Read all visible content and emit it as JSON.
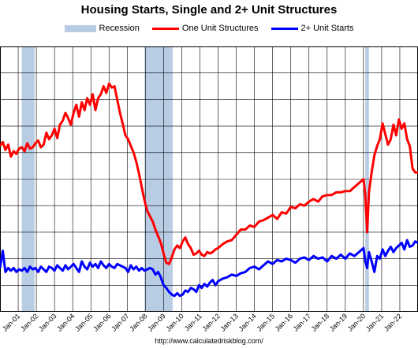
{
  "colors": {
    "recession": "#b8cce4",
    "one_unit": "#ff0000",
    "multi_unit": "#0000ff",
    "grid": "#000000",
    "background": "#ffffff"
  },
  "chart_data": {
    "type": "line",
    "title": "Housing Starts, Single and 2+ Unit Structures",
    "source": "http://www.calculatedriskblog.com/",
    "legend_placement": "top-center",
    "grid": true,
    "x_tick_labels": [
      "Jan-01",
      "Jan-02",
      "Jan-03",
      "Jan-04",
      "Jan-05",
      "Jan-06",
      "Jan-07",
      "Jan-08",
      "Jan-09",
      "Jan-10",
      "Jan-11",
      "Jan-12",
      "Jan-13",
      "Jan-14",
      "Jan-15",
      "Jan-16",
      "Jan-17",
      "Jan-18",
      "Jan-19",
      "Jan-20",
      "Jan-21",
      "Jan-22"
    ],
    "xlim": [
      2000.0,
      2023.0
    ],
    "ylim": [
      0,
      2000
    ],
    "recessions": [
      {
        "label": "Recession",
        "start": 2001.2,
        "end": 2001.9
      },
      {
        "label": "Recession",
        "start": 2007.95,
        "end": 2009.5
      },
      {
        "label": "Recession",
        "start": 2020.1,
        "end": 2020.3
      }
    ],
    "series": [
      {
        "name": "One Unit Structures",
        "x": [
          2000.0,
          2000.15,
          2000.3,
          2000.45,
          2000.6,
          2000.75,
          2000.9,
          2001.05,
          2001.2,
          2001.35,
          2001.5,
          2001.65,
          2001.8,
          2001.95,
          2002.1,
          2002.25,
          2002.4,
          2002.55,
          2002.7,
          2002.85,
          2003.0,
          2003.15,
          2003.3,
          2003.45,
          2003.6,
          2003.75,
          2003.9,
          2004.05,
          2004.2,
          2004.35,
          2004.5,
          2004.65,
          2004.8,
          2004.95,
          2005.1,
          2005.25,
          2005.4,
          2005.55,
          2005.7,
          2005.85,
          2006.0,
          2006.15,
          2006.3,
          2006.45,
          2006.6,
          2006.75,
          2006.9,
          2007.05,
          2007.2,
          2007.35,
          2007.5,
          2007.65,
          2007.8,
          2007.95,
          2008.1,
          2008.25,
          2008.4,
          2008.55,
          2008.7,
          2008.85,
          2009.0,
          2009.15,
          2009.3,
          2009.45,
          2009.6,
          2009.75,
          2009.9,
          2010.05,
          2010.2,
          2010.35,
          2010.5,
          2010.65,
          2010.8,
          2010.95,
          2011.1,
          2011.25,
          2011.4,
          2011.55,
          2011.7,
          2011.85,
          2012.0,
          2012.25,
          2012.5,
          2012.75,
          2013.0,
          2013.25,
          2013.5,
          2013.75,
          2014.0,
          2014.25,
          2014.5,
          2014.75,
          2015.0,
          2015.25,
          2015.5,
          2015.75,
          2016.0,
          2016.25,
          2016.5,
          2016.75,
          2017.0,
          2017.25,
          2017.5,
          2017.75,
          2018.0,
          2018.25,
          2018.5,
          2018.75,
          2019.0,
          2019.25,
          2019.5,
          2019.75,
          2020.0,
          2020.1,
          2020.2,
          2020.3,
          2020.45,
          2020.6,
          2020.75,
          2020.9,
          2021.05,
          2021.2,
          2021.35,
          2021.5,
          2021.65,
          2021.8,
          2021.95,
          2022.1,
          2022.25,
          2022.4,
          2022.55,
          2022.7,
          2022.85,
          2023.0
        ],
        "values": [
          1250,
          1280,
          1220,
          1260,
          1170,
          1210,
          1190,
          1230,
          1240,
          1210,
          1270,
          1230,
          1240,
          1270,
          1290,
          1240,
          1260,
          1350,
          1300,
          1330,
          1380,
          1310,
          1410,
          1440,
          1500,
          1460,
          1410,
          1500,
          1560,
          1470,
          1580,
          1520,
          1610,
          1560,
          1640,
          1520,
          1610,
          1640,
          1700,
          1650,
          1720,
          1690,
          1700,
          1600,
          1500,
          1420,
          1330,
          1300,
          1250,
          1200,
          1130,
          1040,
          940,
          840,
          760,
          720,
          680,
          620,
          570,
          520,
          440,
          370,
          360,
          410,
          470,
          500,
          480,
          530,
          560,
          510,
          480,
          430,
          440,
          460,
          430,
          420,
          450,
          440,
          450,
          470,
          480,
          510,
          530,
          540,
          580,
          620,
          620,
          650,
          640,
          680,
          690,
          710,
          730,
          700,
          750,
          740,
          790,
          780,
          810,
          800,
          830,
          850,
          830,
          870,
          880,
          880,
          900,
          900,
          910,
          910,
          940,
          970,
          1000,
          880,
          600,
          900,
          1050,
          1180,
          1250,
          1300,
          1420,
          1340,
          1260,
          1300,
          1410,
          1330,
          1450,
          1380,
          1420,
          1300,
          1250,
          1080,
          1050,
          1050
        ],
        "color": "#ff0000"
      },
      {
        "name": "2+ Unit Starts",
        "x": [
          2000.0,
          2000.15,
          2000.3,
          2000.45,
          2000.6,
          2000.75,
          2000.9,
          2001.05,
          2001.2,
          2001.35,
          2001.5,
          2001.65,
          2001.8,
          2001.95,
          2002.1,
          2002.25,
          2002.4,
          2002.55,
          2002.7,
          2002.85,
          2003.0,
          2003.15,
          2003.3,
          2003.45,
          2003.6,
          2003.75,
          2003.9,
          2004.05,
          2004.2,
          2004.35,
          2004.5,
          2004.65,
          2004.8,
          2004.95,
          2005.1,
          2005.25,
          2005.4,
          2005.55,
          2005.7,
          2005.85,
          2006.0,
          2006.15,
          2006.3,
          2006.45,
          2006.6,
          2006.75,
          2006.9,
          2007.05,
          2007.2,
          2007.35,
          2007.5,
          2007.65,
          2007.8,
          2007.95,
          2008.1,
          2008.25,
          2008.4,
          2008.55,
          2008.7,
          2008.85,
          2009.0,
          2009.15,
          2009.3,
          2009.45,
          2009.6,
          2009.75,
          2009.9,
          2010.05,
          2010.2,
          2010.35,
          2010.5,
          2010.65,
          2010.8,
          2010.95,
          2011.1,
          2011.25,
          2011.4,
          2011.55,
          2011.7,
          2011.85,
          2012.0,
          2012.25,
          2012.5,
          2012.75,
          2013.0,
          2013.25,
          2013.5,
          2013.75,
          2014.0,
          2014.25,
          2014.5,
          2014.75,
          2015.0,
          2015.25,
          2015.5,
          2015.75,
          2016.0,
          2016.25,
          2016.5,
          2016.75,
          2017.0,
          2017.25,
          2017.5,
          2017.75,
          2018.0,
          2018.25,
          2018.5,
          2018.75,
          2019.0,
          2019.25,
          2019.5,
          2019.75,
          2020.0,
          2020.1,
          2020.2,
          2020.3,
          2020.45,
          2020.6,
          2020.75,
          2020.9,
          2021.05,
          2021.2,
          2021.35,
          2021.5,
          2021.65,
          2021.8,
          2021.95,
          2022.1,
          2022.25,
          2022.4,
          2022.55,
          2022.7,
          2022.85,
          2023.0
        ],
        "values": [
          330,
          460,
          300,
          330,
          310,
          330,
          300,
          320,
          310,
          330,
          300,
          340,
          320,
          330,
          300,
          340,
          320,
          300,
          340,
          330,
          310,
          350,
          330,
          310,
          350,
          320,
          340,
          360,
          330,
          300,
          380,
          340,
          320,
          370,
          340,
          360,
          330,
          380,
          350,
          330,
          360,
          340,
          330,
          360,
          350,
          340,
          330,
          300,
          350,
          320,
          340,
          310,
          330,
          310,
          320,
          330,
          320,
          280,
          300,
          260,
          200,
          180,
          150,
          130,
          120,
          140,
          120,
          130,
          160,
          150,
          180,
          170,
          150,
          200,
          180,
          210,
          190,
          220,
          240,
          200,
          230,
          250,
          260,
          280,
          270,
          290,
          300,
          330,
          340,
          320,
          350,
          380,
          360,
          390,
          380,
          400,
          390,
          370,
          400,
          410,
          390,
          420,
          400,
          410,
          380,
          420,
          400,
          430,
          400,
          440,
          420,
          450,
          480,
          380,
          330,
          450,
          380,
          300,
          420,
          400,
          470,
          420,
          460,
          490,
          450,
          480,
          500,
          520,
          470,
          540,
          490,
          500,
          530,
          520
        ]
      }
    ]
  }
}
